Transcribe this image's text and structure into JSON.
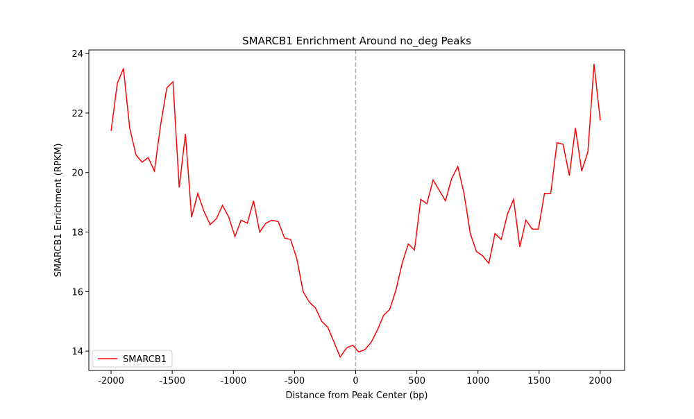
{
  "chart_data": {
    "type": "line",
    "title": "SMARCB1 Enrichment Around no_deg Peaks",
    "xlabel": "Distance from Peak Center (bp)",
    "ylabel": "SMARCB1 Enrichment (RPKM)",
    "x": [
      -2000,
      -1949,
      -1899,
      -1848,
      -1797,
      -1747,
      -1696,
      -1646,
      -1595,
      -1544,
      -1494,
      -1443,
      -1392,
      -1342,
      -1291,
      -1241,
      -1190,
      -1139,
      -1089,
      -1038,
      -987,
      -937,
      -886,
      -835,
      -785,
      -734,
      -684,
      -633,
      -582,
      -532,
      -481,
      -430,
      -380,
      -329,
      -278,
      -228,
      -177,
      -127,
      -76,
      -25,
      25,
      76,
      127,
      177,
      228,
      278,
      329,
      380,
      430,
      481,
      532,
      582,
      633,
      684,
      734,
      785,
      835,
      886,
      937,
      987,
      1038,
      1089,
      1139,
      1190,
      1241,
      1291,
      1342,
      1392,
      1443,
      1494,
      1544,
      1595,
      1646,
      1696,
      1747,
      1797,
      1848,
      1899,
      1949,
      2000
    ],
    "series": [
      {
        "name": "SMARCB1",
        "color": "#ff0000",
        "values": [
          21.4,
          23.0,
          23.5,
          21.5,
          20.6,
          20.35,
          20.5,
          20.05,
          21.6,
          22.85,
          23.05,
          19.5,
          21.3,
          18.5,
          19.3,
          18.7,
          18.25,
          18.45,
          18.9,
          18.5,
          17.85,
          18.4,
          18.3,
          19.05,
          18.0,
          18.3,
          18.4,
          18.35,
          17.8,
          17.75,
          17.1,
          16.0,
          15.65,
          15.45,
          15.0,
          14.8,
          14.3,
          13.8,
          14.1,
          14.2,
          13.97,
          14.05,
          14.3,
          14.7,
          15.2,
          15.4,
          16.05,
          16.95,
          17.6,
          17.4,
          19.1,
          18.95,
          19.75,
          19.4,
          19.05,
          19.8,
          20.2,
          19.3,
          17.95,
          17.35,
          17.2,
          16.95,
          17.95,
          17.75,
          18.6,
          19.1,
          17.5,
          18.4,
          18.1,
          18.1,
          19.3,
          19.3,
          21.0,
          20.95,
          19.9,
          21.5,
          20.05,
          20.7,
          23.65,
          21.75
        ]
      }
    ],
    "xlim": [
      -2182,
      2199
    ],
    "ylim": [
      13.35,
      24.12
    ],
    "xticks": [
      -2000,
      -1500,
      -1000,
      -500,
      0,
      500,
      1000,
      1500,
      2000
    ],
    "yticks": [
      14,
      16,
      18,
      20,
      22,
      24
    ],
    "vline": 0,
    "vline_color": "#b0b0b0",
    "legend": "lower left",
    "grid": false
  }
}
